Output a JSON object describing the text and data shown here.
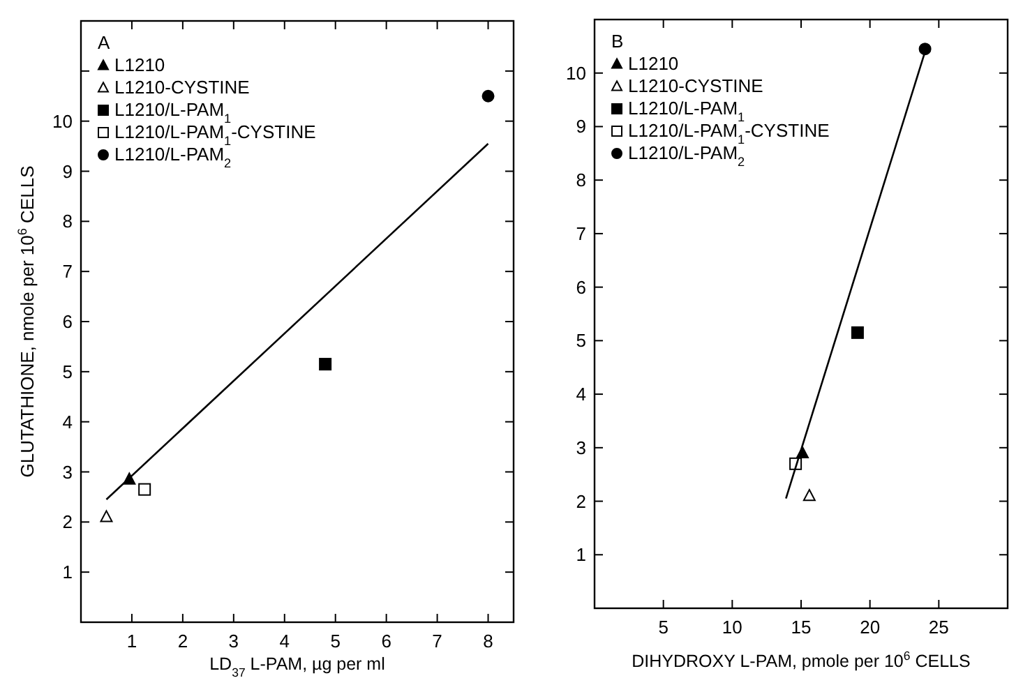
{
  "chart_data": [
    {
      "type": "scatter",
      "title": "A",
      "xlabel": "LD$_{37}$ L-PAM, µg per ml",
      "ylabel": "GLUTATHIONE, nmole per 10$^{6}$ CELLS",
      "xlim": [
        0,
        8.5
      ],
      "ylim": [
        0,
        12
      ],
      "xticks": [
        1,
        2,
        3,
        4,
        5,
        6,
        7,
        8
      ],
      "yticks": [
        1,
        2,
        3,
        4,
        5,
        6,
        7,
        8,
        9,
        10,
        {
          "value": 11,
          "label": null
        }
      ],
      "legend": "top left",
      "grid": false,
      "series": [
        {
          "name": "L1210",
          "color": "#000000",
          "marker": "triangle",
          "x": [
            0.95
          ],
          "values": [
            2.85
          ]
        },
        {
          "name": "L1210-CYSTINE",
          "color": "#ffffff",
          "marker": "triangle",
          "x": [
            0.5
          ],
          "values": [
            2.1
          ]
        },
        {
          "name": "L1210/L-PAM$_{1}$",
          "color": "#000000",
          "marker": "square",
          "x": [
            4.8
          ],
          "values": [
            5.15
          ]
        },
        {
          "name": "L1210/L-PAM$_{1}$-CYSTINE",
          "color": "#ffffff",
          "marker": "square",
          "x": [
            1.25
          ],
          "values": [
            2.65
          ]
        },
        {
          "name": "L1210/L-PAM$_{2}$",
          "color": "#000000",
          "marker": "circle",
          "x": [
            8.0
          ],
          "values": [
            10.5
          ]
        },
        {
          "type": "line",
          "color": "#000000",
          "marker": "none",
          "line_style": "solid",
          "x": [
            0.5,
            8.0
          ],
          "values": [
            2.45,
            9.55
          ]
        }
      ]
    },
    {
      "type": "scatter",
      "title": "B",
      "xlabel": "DIHYDROXY L-PAM, pmole per 10$^{6}$ CELLS",
      "xlim": [
        0,
        30
      ],
      "ylim": [
        0,
        11
      ],
      "xticks": [
        5,
        10,
        15,
        20,
        25
      ],
      "yticks": [
        1,
        2,
        3,
        4,
        5,
        6,
        7,
        8,
        9,
        10
      ],
      "legend": "top left",
      "grid": false,
      "series": [
        {
          "name": "L1210",
          "color": "#000000",
          "marker": "triangle",
          "x": [
            15.1
          ],
          "values": [
            2.9
          ]
        },
        {
          "name": "L1210-CYSTINE",
          "color": "#ffffff",
          "marker": "triangle",
          "x": [
            15.6
          ],
          "values": [
            2.1
          ]
        },
        {
          "name": "L1210/L-PAM$_{1}$",
          "color": "#000000",
          "marker": "square",
          "x": [
            19.1
          ],
          "values": [
            5.15
          ]
        },
        {
          "name": "L1210/L-PAM$_{1}$-CYSTINE",
          "color": "#ffffff",
          "marker": "square",
          "x": [
            14.6
          ],
          "values": [
            2.7
          ]
        },
        {
          "name": "L1210/L-PAM$_{2}$",
          "color": "#000000",
          "marker": "circle",
          "x": [
            24.0
          ],
          "values": [
            10.45
          ]
        },
        {
          "type": "line",
          "color": "#000000",
          "marker": "none",
          "line_style": "solid",
          "x": [
            13.9,
            24.0
          ],
          "values": [
            2.05,
            10.4
          ]
        }
      ]
    }
  ]
}
